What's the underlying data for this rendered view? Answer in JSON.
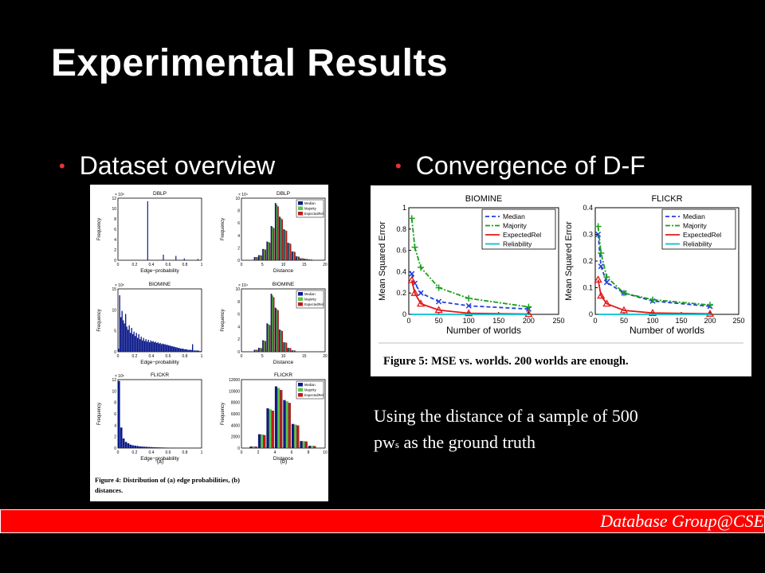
{
  "slide": {
    "title": "Experimental Results",
    "bullets": [
      "Dataset overview",
      "Convergence of D-F"
    ],
    "note_line1": "Using the distance of a sample of 500",
    "note_line2_prefix": "pw",
    "note_line2_sub": "s",
    "note_line2_suffix": " as the ground truth",
    "footer": "Database Group@CSE"
  },
  "figure4": {
    "panels": [
      {
        "title": "DBLP",
        "scale": "× 10⁵"
      },
      {
        "title": "DBLP",
        "scale": "× 10⁴"
      },
      {
        "title": "BIOMINE",
        "scale": "× 10⁵"
      },
      {
        "title": "BIOMINE",
        "scale": "× 10⁴"
      },
      {
        "title": "FLICKR",
        "scale": "× 10⁶"
      },
      {
        "title": "FLICKR",
        "scale": ""
      }
    ],
    "ylabel": "Frequency",
    "xlabel_left": "Edge−probability",
    "xlabel_right": "Distance",
    "legend": [
      "Median",
      "Majority",
      "ExpectedRel"
    ],
    "legend_colors": [
      "#0b1a8a",
      "#58c84a",
      "#c21a1a"
    ],
    "sub_a": "(a)",
    "sub_b": "(b)",
    "left_x_ticks": [
      "0",
      "0.2",
      "0.4",
      "0.6",
      "0.8",
      "1"
    ],
    "dblp_left_y_ticks": [
      "0",
      "2",
      "4",
      "6",
      "8",
      "10",
      "12"
    ],
    "biomine_left_y_ticks": [
      "0",
      "5",
      "10",
      "15"
    ],
    "flickr_left_y_ticks": [
      "0",
      "2",
      "4",
      "6",
      "8",
      "10",
      "12"
    ],
    "right_x_ticks_1": [
      "0",
      "5",
      "10",
      "15",
      "20"
    ],
    "right_x_ticks_3": [
      "0",
      "2",
      "4",
      "6",
      "8",
      "10"
    ],
    "dblp_right_y_ticks": [
      "0",
      "2",
      "4",
      "6",
      "8",
      "10"
    ],
    "biomine_right_y_ticks": [
      "0",
      "2",
      "4",
      "6",
      "8",
      "10"
    ],
    "flickr_right_y_ticks": [
      "0",
      "2000",
      "4000",
      "6000",
      "8000",
      "10000",
      "12000"
    ],
    "caption_line1": "Figure 4:  Distribution of (a) edge probabilities, (b)",
    "caption_line2": "distances."
  },
  "chart_data": [
    {
      "type": "line",
      "title": "BIOMINE",
      "xlabel": "Number of worlds",
      "ylabel": "Mean Squared Error",
      "x": [
        5,
        10,
        20,
        50,
        100,
        200
      ],
      "xlim": [
        0,
        250
      ],
      "ylim": [
        0,
        1
      ],
      "xticks": [
        0,
        50,
        100,
        150,
        200,
        250
      ],
      "yticks": [
        0,
        0.2,
        0.4,
        0.6,
        0.8,
        1
      ],
      "legend_position": "top-right",
      "series": [
        {
          "name": "Median",
          "color": "#1f3fe0",
          "values": [
            0.38,
            0.29,
            0.2,
            0.12,
            0.08,
            0.05
          ]
        },
        {
          "name": "Majority",
          "color": "#19a019",
          "values": [
            0.9,
            0.63,
            0.44,
            0.25,
            0.15,
            0.07
          ]
        },
        {
          "name": "ExpectedRel",
          "color": "#e01818",
          "values": [
            0.32,
            0.2,
            0.1,
            0.04,
            0.01,
            0.003
          ]
        },
        {
          "name": "Reliability",
          "color": "#00c0d0",
          "values": [
            0,
            0,
            0,
            0,
            0,
            0
          ]
        }
      ]
    },
    {
      "type": "line",
      "title": "FLICKR",
      "xlabel": "Number of worlds",
      "ylabel": "Mean Squared Error",
      "x": [
        5,
        10,
        20,
        50,
        100,
        200
      ],
      "xlim": [
        0,
        250
      ],
      "ylim": [
        0,
        0.4
      ],
      "xticks": [
        0,
        50,
        100,
        150,
        200,
        250
      ],
      "yticks": [
        0,
        0.1,
        0.2,
        0.3,
        0.4
      ],
      "legend_position": "top-right",
      "series": [
        {
          "name": "Median",
          "color": "#1f3fe0",
          "values": [
            0.3,
            0.18,
            0.12,
            0.08,
            0.05,
            0.03
          ]
        },
        {
          "name": "Majority",
          "color": "#19a019",
          "values": [
            0.33,
            0.23,
            0.14,
            0.08,
            0.055,
            0.035
          ]
        },
        {
          "name": "ExpectedRel",
          "color": "#e01818",
          "values": [
            0.13,
            0.07,
            0.04,
            0.015,
            0.005,
            0.002
          ]
        },
        {
          "name": "Reliability",
          "color": "#00c0d0",
          "values": [
            0,
            0,
            0,
            0,
            0,
            0
          ]
        }
      ]
    }
  ],
  "figure5": {
    "caption": "Figure 5:  MSE vs.  worlds.  200 worlds are enough."
  }
}
